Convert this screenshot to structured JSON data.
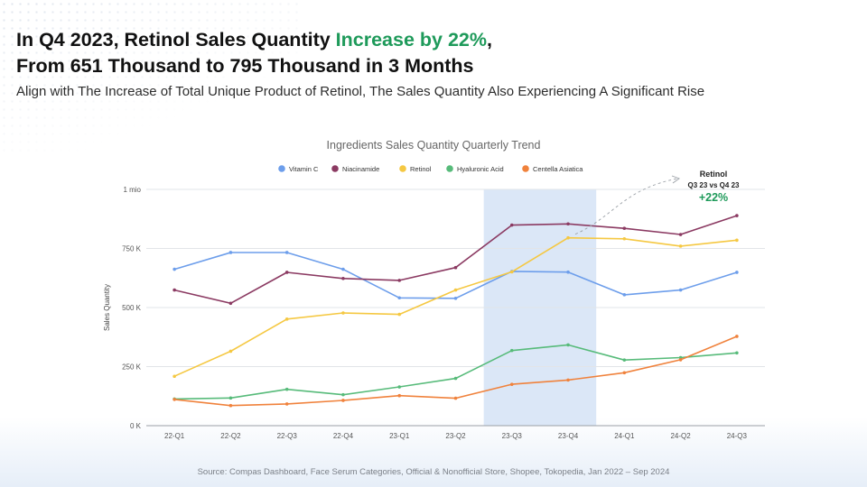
{
  "headline": {
    "line1_prefix": "In Q4 2023, Retinol Sales Quantity ",
    "line1_accent": "Increase by 22%",
    "line1_suffix": ",",
    "line2": "From 651 Thousand to 795 Thousand in 3 Months"
  },
  "subtitle": "Align with The Increase of Total Unique Product of Retinol, The Sales Quantity Also Experiencing A Significant Rise",
  "source": "Source: Compas Dashboard, Face Serum Categories, Official & Nonofficial Store, Shopee, Tokopedia,  Jan 2022 – Sep 2024",
  "colors": {
    "accent": "#1e9a5a",
    "highlight_band": "#dbe7f7"
  },
  "chart_data": {
    "type": "line",
    "title": "Ingredients Sales Quantity Quarterly Trend",
    "xlabel": "",
    "ylabel": "Sales Quantity",
    "ylim": [
      0,
      1000000
    ],
    "yticks": [
      {
        "value": 0,
        "label": "0 K"
      },
      {
        "value": 250000,
        "label": "250 K"
      },
      {
        "value": 500000,
        "label": "500 K"
      },
      {
        "value": 750000,
        "label": "750 K"
      },
      {
        "value": 1000000,
        "label": "1 mio"
      }
    ],
    "grid": true,
    "legend_position": "top",
    "categories": [
      "22-Q1",
      "22-Q2",
      "22-Q3",
      "22-Q4",
      "23-Q1",
      "23-Q2",
      "23-Q3",
      "23-Q4",
      "24-Q1",
      "24-Q2",
      "24-Q3"
    ],
    "highlight_range": [
      "23-Q3",
      "23-Q4"
    ],
    "series": [
      {
        "name": "Vitamin C",
        "color": "#6d9eeb",
        "values": [
          662000,
          733000,
          733000,
          662000,
          541000,
          539000,
          653000,
          650000,
          554000,
          574000,
          649000
        ]
      },
      {
        "name": "Niacinamide",
        "color": "#8b3a62",
        "values": [
          574000,
          518000,
          649000,
          623000,
          615000,
          669000,
          849000,
          854000,
          835000,
          809000,
          889000
        ]
      },
      {
        "name": "Retinol",
        "color": "#f5c842",
        "values": [
          209000,
          315000,
          451000,
          477000,
          471000,
          574000,
          651000,
          795000,
          791000,
          760000,
          785000
        ]
      },
      {
        "name": "Hyaluronic Acid",
        "color": "#57bb7a",
        "values": [
          113000,
          117000,
          154000,
          131000,
          164000,
          200000,
          318000,
          342000,
          278000,
          288000,
          308000
        ]
      },
      {
        "name": "Centella Asiatica",
        "color": "#f0823c",
        "values": [
          111000,
          85000,
          92000,
          107000,
          127000,
          116000,
          175000,
          193000,
          224000,
          279000,
          378000
        ]
      }
    ],
    "annotation": {
      "title": "Retinol",
      "subtitle": "Q3 23 vs Q4 23",
      "value": "+22%"
    }
  }
}
